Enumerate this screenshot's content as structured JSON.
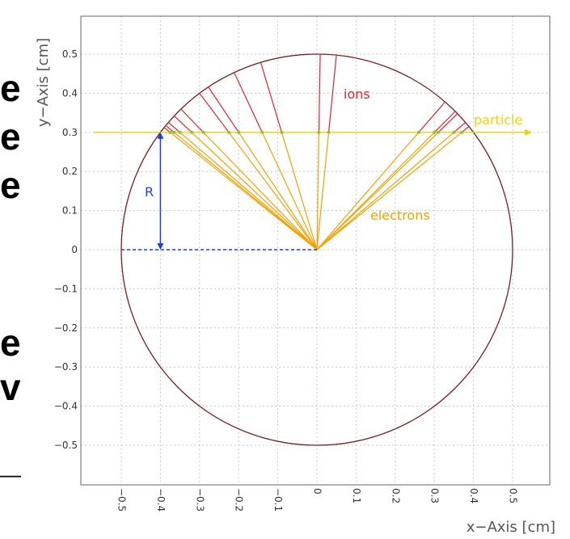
{
  "background_letters": [
    "e",
    "e",
    "e",
    "e",
    "v",
    "_"
  ],
  "colors": {
    "circle": "#7a1f1f",
    "ions": "#e8202a",
    "electrons": "#f5a000",
    "particle": "#f2d200",
    "radius": "#1f3fdc",
    "dots": "#8ac43a",
    "grid": "#c8c8c8",
    "frame": "#666666"
  },
  "chart_data": {
    "type": "line",
    "title": "",
    "xlabel": "x−Axis [cm]",
    "ylabel": "y−Axis [cm]",
    "xlim": [
      -0.58,
      0.58
    ],
    "ylim": [
      -0.6,
      0.6
    ],
    "grid": true,
    "x_ticks": [
      -0.5,
      -0.4,
      -0.3,
      -0.2,
      -0.1,
      0,
      0.1,
      0.2,
      0.3,
      0.4,
      0.5
    ],
    "x_tick_labels": [
      "−0.5",
      "−0.4",
      "−0.3",
      "−0.2",
      "−0.1",
      "0",
      "0.1",
      "0.2",
      "0.3",
      "0.4",
      "0.5"
    ],
    "y_ticks": [
      0.5,
      0.4,
      0.3,
      0.2,
      0.1,
      0,
      -0.1,
      -0.2,
      -0.3,
      -0.4,
      -0.5
    ],
    "y_tick_labels": [
      "0.5",
      "0.4",
      "0.3",
      "0.2",
      "0.1",
      "0",
      "−0.1",
      "−0.2",
      "−0.3",
      "−0.4",
      "−0.5"
    ],
    "circle_radius": 0.5,
    "particle_y": 0.3,
    "particle_x_range": [
      -0.57,
      0.55
    ],
    "particle_label": "particle",
    "ions_label": "ions",
    "electrons_label": "electrons",
    "radius_label": "R",
    "radius_point": [
      -0.4,
      0.3
    ],
    "radius_base": [
      -0.5,
      0.0
    ],
    "ionization_x": [
      -0.375,
      -0.365,
      -0.35,
      -0.32,
      -0.29,
      -0.225,
      -0.2,
      -0.14,
      -0.09,
      0.005,
      0.03,
      0.26,
      0.3,
      0.31,
      0.35,
      0.37
    ]
  }
}
